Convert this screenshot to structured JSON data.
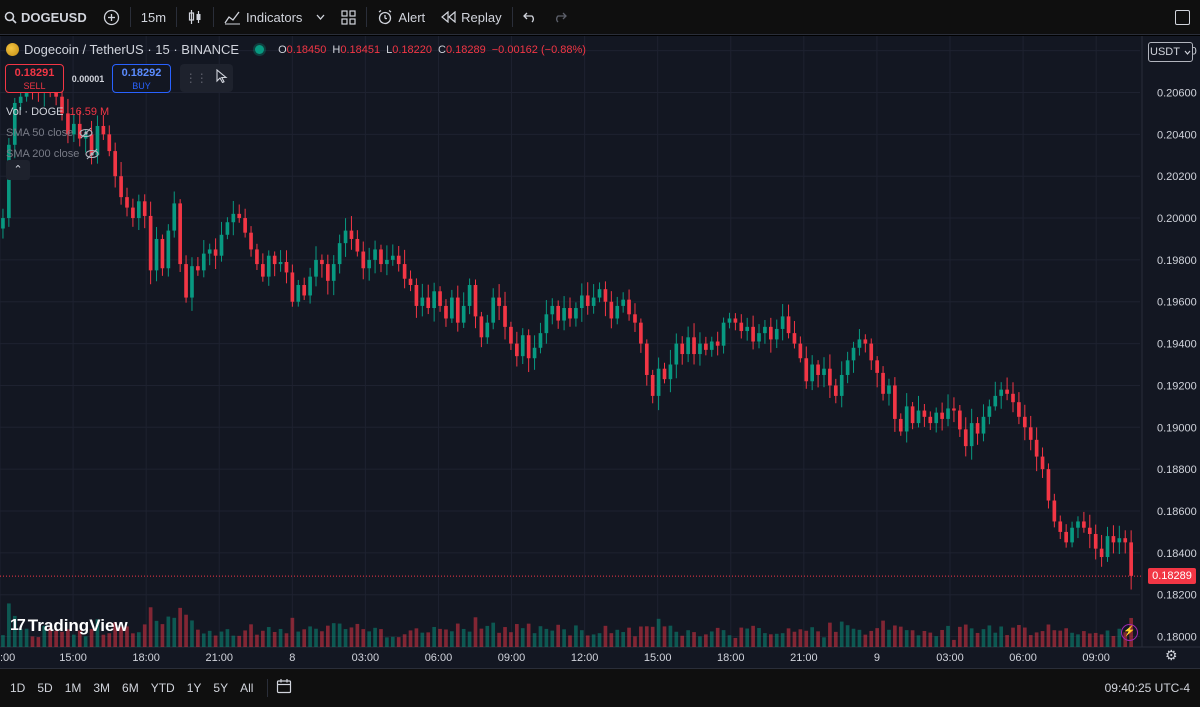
{
  "toolbar": {
    "symbol": "DOGEUSD",
    "interval": "15m",
    "indicators_label": "Indicators",
    "alert_label": "Alert",
    "replay_label": "Replay"
  },
  "legend": {
    "title": "Dogecoin / TetherUS · 15 · BINANCE",
    "o_key": "O",
    "o_val": "0.18450",
    "h_key": "H",
    "h_val": "0.18451",
    "l_key": "L",
    "l_val": "0.18220",
    "c_key": "C",
    "c_val": "0.18289",
    "change": "−0.00162 (−0.88%)"
  },
  "trade": {
    "sell_price": "0.18291",
    "sell_label": "SELL",
    "spread": "0.00001",
    "buy_price": "0.18292",
    "buy_label": "BUY"
  },
  "indicators": {
    "vol_name": "Vol · DOGE",
    "vol_value": "16.59 M",
    "sma50": "SMA 50 close",
    "sma200": "SMA 200 close"
  },
  "currency": "USDT",
  "price_axis": [
    "0.20800",
    "0.20600",
    "0.20400",
    "0.20200",
    "0.20000",
    "0.19800",
    "0.19600",
    "0.19400",
    "0.19200",
    "0.19000",
    "0.18800",
    "0.18600",
    "0.18400",
    "0.18200",
    "0.18000"
  ],
  "current_price": "0.18289",
  "time_axis": [
    ":00",
    "15:00",
    "18:00",
    "21:00",
    "8",
    "03:00",
    "06:00",
    "09:00",
    "12:00",
    "15:00",
    "18:00",
    "21:00",
    "9",
    "03:00",
    "06:00",
    "09:00"
  ],
  "logo_text": "TradingView",
  "ranges": [
    "1D",
    "5D",
    "1M",
    "3M",
    "6M",
    "YTD",
    "1Y",
    "5Y",
    "All"
  ],
  "clock": "09:40:25 UTC-4",
  "colors": {
    "up": "#089981",
    "down": "#f23645",
    "bg": "#131722",
    "grid": "#1e2230"
  },
  "chart_data": {
    "type": "candlestick",
    "interval": "15m",
    "ylim": [
      0.1795,
      0.2087
    ],
    "closes": [
      0.2,
      0.2035,
      0.2055,
      0.2058,
      0.2065,
      0.2062,
      0.206,
      0.2064,
      0.2062,
      0.2058,
      0.205,
      0.204,
      0.2045,
      0.2038,
      0.204,
      0.203,
      0.2044,
      0.204,
      0.2032,
      0.202,
      0.201,
      0.2005,
      0.2,
      0.2008,
      0.2001,
      0.1975,
      0.199,
      0.1976,
      0.1994,
      0.2007,
      0.1978,
      0.1962,
      0.1977,
      0.1975,
      0.1983,
      0.1985,
      0.1982,
      0.1992,
      0.1998,
      0.2002,
      0.2,
      0.1993,
      0.1985,
      0.1978,
      0.1972,
      0.1982,
      0.1978,
      0.1979,
      0.1974,
      0.196,
      0.1968,
      0.1963,
      0.1972,
      0.198,
      0.1978,
      0.197,
      0.1978,
      0.1988,
      0.1994,
      0.199,
      0.1984,
      0.1976,
      0.198,
      0.1985,
      0.1978,
      0.198,
      0.1982,
      0.1978,
      0.1971,
      0.1968,
      0.1958,
      0.1962,
      0.1957,
      0.1965,
      0.1958,
      0.1952,
      0.1962,
      0.195,
      0.1958,
      0.1968,
      0.1953,
      0.1943,
      0.195,
      0.1962,
      0.1958,
      0.1948,
      0.194,
      0.1934,
      0.1944,
      0.1933,
      0.1938,
      0.1945,
      0.1954,
      0.1958,
      0.1951,
      0.1957,
      0.1952,
      0.1957,
      0.1963,
      0.1958,
      0.1962,
      0.1966,
      0.196,
      0.1952,
      0.1958,
      0.1961,
      0.1954,
      0.195,
      0.194,
      0.1925,
      0.1915,
      0.1928,
      0.1923,
      0.193,
      0.194,
      0.1935,
      0.1943,
      0.1935,
      0.194,
      0.1937,
      0.1941,
      0.1939,
      0.195,
      0.1952,
      0.195,
      0.1946,
      0.1948,
      0.1941,
      0.1945,
      0.1948,
      0.1942,
      0.1947,
      0.1953,
      0.1945,
      0.194,
      0.1933,
      0.1922,
      0.193,
      0.1925,
      0.1928,
      0.192,
      0.1915,
      0.1925,
      0.1932,
      0.1938,
      0.1942,
      0.194,
      0.1932,
      0.1926,
      0.1916,
      0.192,
      0.1904,
      0.1898,
      0.191,
      0.1902,
      0.1908,
      0.1905,
      0.1902,
      0.1907,
      0.1904,
      0.1909,
      0.1908,
      0.1899,
      0.1891,
      0.1902,
      0.1897,
      0.1905,
      0.191,
      0.1915,
      0.1918,
      0.1916,
      0.1912,
      0.1905,
      0.19,
      0.1894,
      0.1886,
      0.188,
      0.1865,
      0.1855,
      0.185,
      0.1845,
      0.1852,
      0.1855,
      0.1852,
      0.1849,
      0.1842,
      0.1838,
      0.1848,
      0.1845,
      0.1847,
      0.1845,
      0.1829
    ]
  }
}
